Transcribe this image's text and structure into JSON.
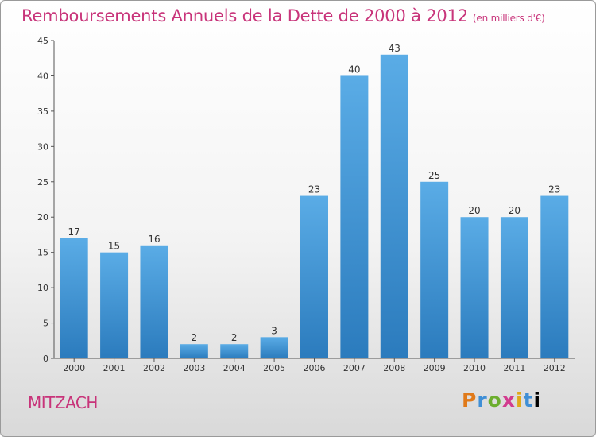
{
  "title": "Remboursements Annuels de la Dette de 2000 à 2012",
  "unit": "(en milliers d'€)",
  "commune": "MITZACH",
  "logo": "Proxiti",
  "colors": {
    "accent": "#c8347a",
    "bar_top": "#5aace6",
    "bar_bottom": "#2b7bbd"
  },
  "chart_data": {
    "type": "bar",
    "title": "Remboursements Annuels de la Dette de 2000 à 2012",
    "subtitle": "(en milliers d'€)",
    "xlabel": "",
    "ylabel": "",
    "categories": [
      "2000",
      "2001",
      "2002",
      "2003",
      "2004",
      "2005",
      "2006",
      "2007",
      "2008",
      "2009",
      "2010",
      "2011",
      "2012"
    ],
    "values": [
      17,
      15,
      16,
      2,
      2,
      3,
      23,
      40,
      43,
      25,
      20,
      20,
      23
    ],
    "value_labels": [
      "17",
      "15",
      "16",
      "2",
      "2",
      "3",
      "23",
      "40",
      "43",
      "25",
      "20",
      "20",
      "23"
    ],
    "ylim": [
      0,
      45
    ],
    "yticks": [
      "0",
      "5",
      "10",
      "15",
      "20",
      "25",
      "30",
      "35",
      "40",
      "45"
    ],
    "grid": false,
    "legend": "none"
  }
}
